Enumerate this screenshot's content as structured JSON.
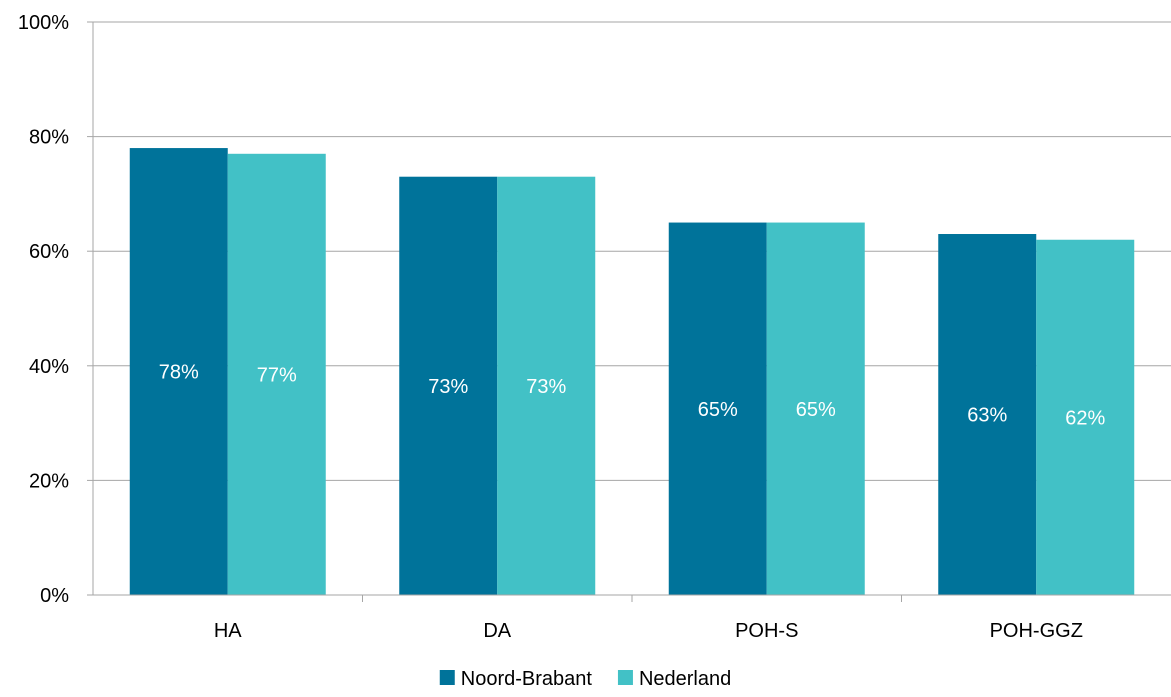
{
  "chart_data": {
    "type": "bar",
    "categories": [
      "HA",
      "DA",
      "POH-S",
      "POH-GGZ"
    ],
    "series": [
      {
        "name": "Noord-Brabant",
        "values": [
          78,
          73,
          65,
          63
        ],
        "labels": [
          "78%",
          "73%",
          "65%",
          "63%"
        ],
        "color": "#00739A"
      },
      {
        "name": "Nederland",
        "values": [
          77,
          73,
          65,
          62
        ],
        "labels": [
          "77%",
          "73%",
          "65%",
          "62%"
        ],
        "color": "#42C1C6"
      }
    ],
    "ylim": [
      0,
      100
    ],
    "y_ticks": [
      0,
      20,
      40,
      60,
      80,
      100
    ],
    "y_tick_labels": [
      "0%",
      "20%",
      "40%",
      "60%",
      "80%",
      "100%"
    ],
    "grid": true,
    "legend_position": "bottom",
    "title": "",
    "xlabel": "",
    "ylabel": ""
  },
  "colors": {
    "gridline": "#A6A6A6",
    "axis": "#A6A6A6",
    "text": "#000000",
    "data_label": "#FFFFFF"
  }
}
